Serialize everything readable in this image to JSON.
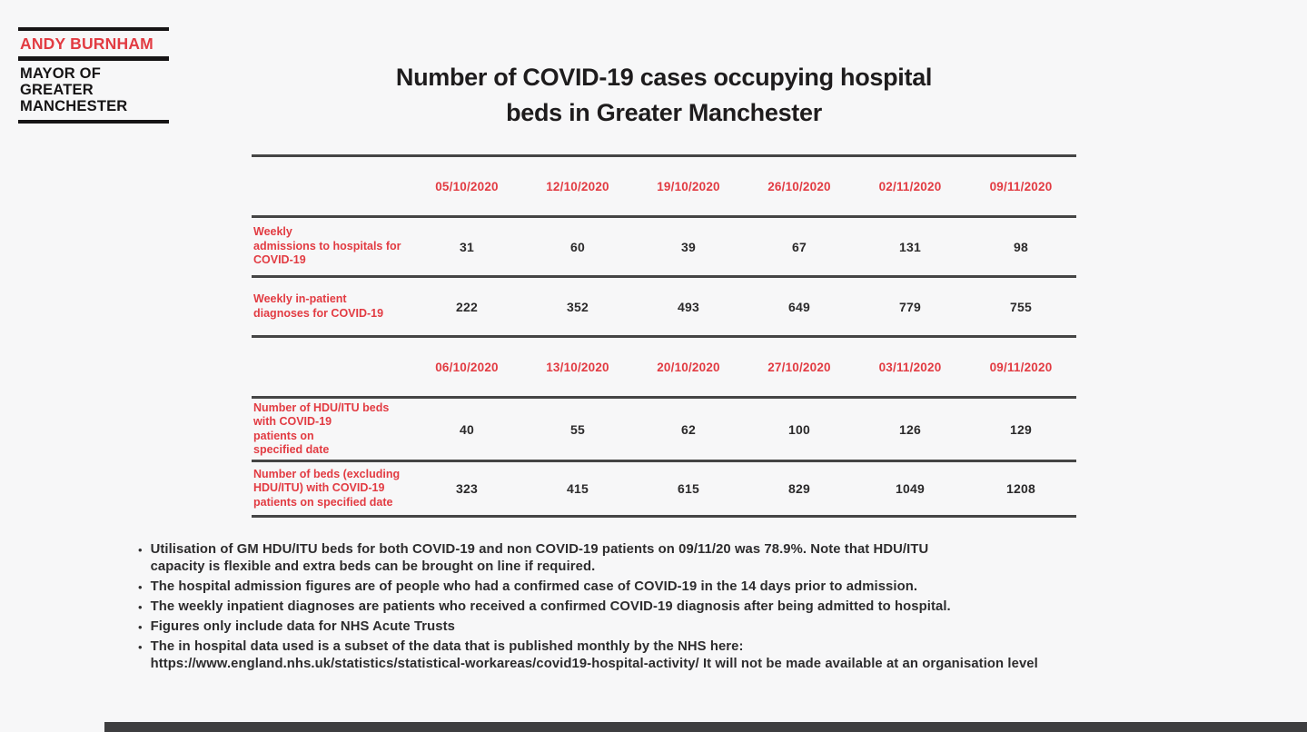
{
  "colors": {
    "accent_red": "#e23b42",
    "ink": "#1e1c1d",
    "value_ink": "#2b2a2b",
    "note_ink": "#2d2c2d",
    "rule": "#454545",
    "bottom_bar": "#3e3e40",
    "bg": "#f7f7f8"
  },
  "logo": {
    "name": "ANDY BURNHAM",
    "role": "MAYOR OF\nGREATER\nMANCHESTER"
  },
  "title": "Number of COVID-19 cases occupying hospital\nbeds in Greater Manchester",
  "table": {
    "sections": [
      {
        "dates": [
          "05/10/2020",
          "12/10/2020",
          "19/10/2020",
          "26/10/2020",
          "02/11/2020",
          "09/11/2020"
        ],
        "rows": [
          {
            "label": "Weekly\nadmissions to hospitals for\nCOVID-19",
            "values": [
              "31",
              "60",
              "39",
              "67",
              "131",
              "98"
            ]
          },
          {
            "label": "Weekly in-patient\ndiagnoses for COVID-19",
            "values": [
              "222",
              "352",
              "493",
              "649",
              "779",
              "755"
            ]
          }
        ]
      },
      {
        "dates": [
          "06/10/2020",
          "13/10/2020",
          "20/10/2020",
          "27/10/2020",
          "03/11/2020",
          "09/11/2020"
        ],
        "rows": [
          {
            "label": "Number of HDU/ITU beds\nwith COVID-19\npatients on\nspecified date",
            "values": [
              "40",
              "55",
              "62",
              "100",
              "126",
              "129"
            ]
          },
          {
            "label": "Number of beds (excluding\nHDU/ITU) with COVID-19\npatients on specified date",
            "values": [
              "323",
              "415",
              "615",
              "829",
              "1049",
              "1208"
            ]
          }
        ]
      }
    ]
  },
  "notes": [
    "Utilisation of GM HDU/ITU beds for both COVID-19 and non COVID-19 patients on 09/11/20 was 78.9%.  Note that HDU/ITU\ncapacity is flexible and extra beds can be brought on line if required.",
    "The hospital admission figures are of people who had a confirmed case of COVID-19 in the 14 days prior to admission.",
    "The weekly inpatient diagnoses are patients who received a confirmed COVID-19 diagnosis after being admitted to hospital.",
    "Figures only include data for NHS Acute Trusts",
    "The in hospital data used is a subset of the data that is published monthly by the NHS here:\nhttps://www.england.nhs.uk/statistics/statistical-workareas/covid19-hospital-activity/ It will not be made available at an organisation level"
  ],
  "bullet_glyph": "•"
}
